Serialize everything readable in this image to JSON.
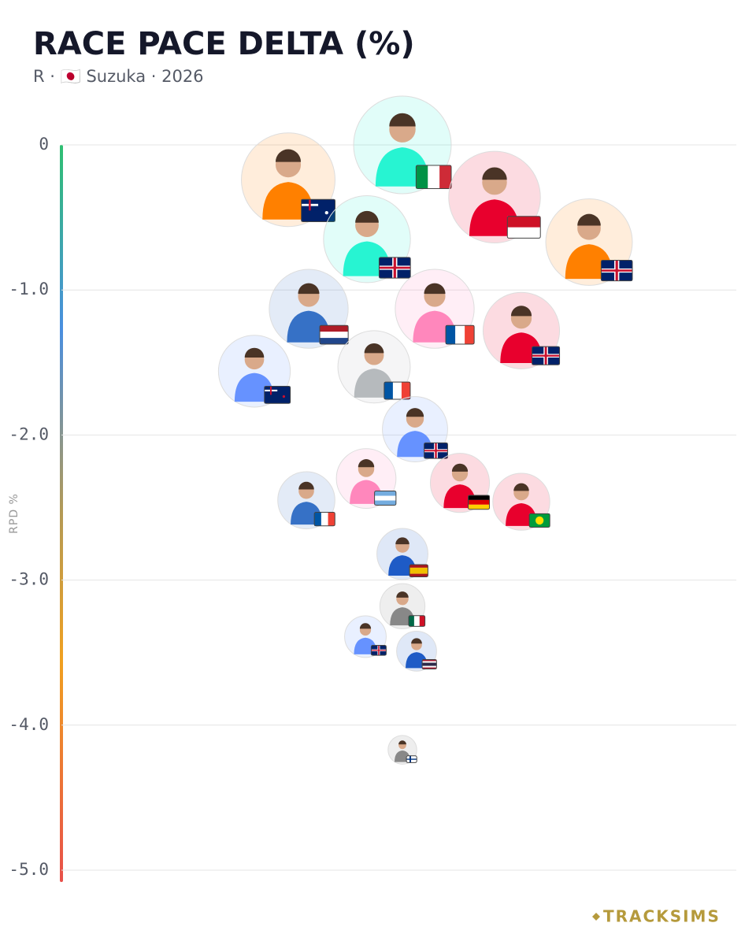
{
  "chart_data": {
    "type": "beeswarm",
    "title": "RACE PACE DELTA (%)",
    "subtitle": "R · 🇯🇵 Suzuka · 2026",
    "y_label": "RPD %",
    "brand": "TRACKSIMS",
    "ylim": [
      -5.0,
      0
    ],
    "yticks": [
      0,
      {
        "value": -1,
        "label": "-1.0"
      },
      {
        "value": -2,
        "label": "-2.0"
      },
      {
        "value": -3,
        "label": "-3.0"
      },
      {
        "value": -4,
        "label": "-4.0"
      },
      {
        "value": -5,
        "label": "-5.0"
      }
    ],
    "grid": true,
    "values": [
      0.0,
      -0.24,
      -0.36,
      -0.65,
      -0.67,
      -1.13,
      -1.13,
      -1.28,
      -1.56,
      -1.53,
      -1.96,
      -2.3,
      -2.33,
      -2.45,
      -2.46,
      -2.82,
      -3.18,
      -3.39,
      -3.49,
      -4.17
    ],
    "colors": [
      "#27f4d2",
      "#ff8000",
      "#e8002d",
      "#27f4d2",
      "#ff8000",
      "#3671c6",
      "#ff87bc",
      "#e8002d",
      "#6692ff",
      "#b6babd",
      "#6692ff",
      "#ff87bc",
      "#e8002d",
      "#3671c6",
      "#e8002d",
      "#1e5bc6",
      "#888888",
      "#6692ff",
      "#1e5bc6",
      "#888888"
    ]
  }
}
